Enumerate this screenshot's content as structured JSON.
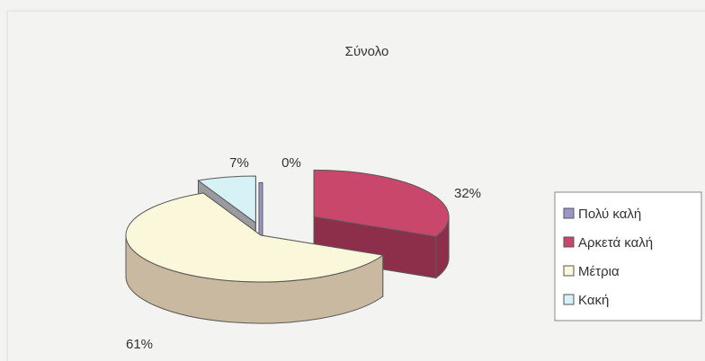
{
  "chart_data": {
    "type": "pie",
    "title": "Σύνολο",
    "categories": [
      "Πολύ καλή",
      "Αρκετά καλή",
      "Μέτρια",
      "Κακή"
    ],
    "values": [
      0,
      32,
      61,
      7
    ],
    "labels": [
      "0%",
      "32%",
      "61%",
      "7%"
    ],
    "colors": [
      "#9b96c8",
      "#c8476a",
      "#fbf7da",
      "#d6f2f6"
    ],
    "side_colors": [
      "#6f6a9c",
      "#8d2f4a",
      "#c9b9a0",
      "#9a9aa0"
    ],
    "legend_position": "right",
    "style": "3d-exploded"
  }
}
